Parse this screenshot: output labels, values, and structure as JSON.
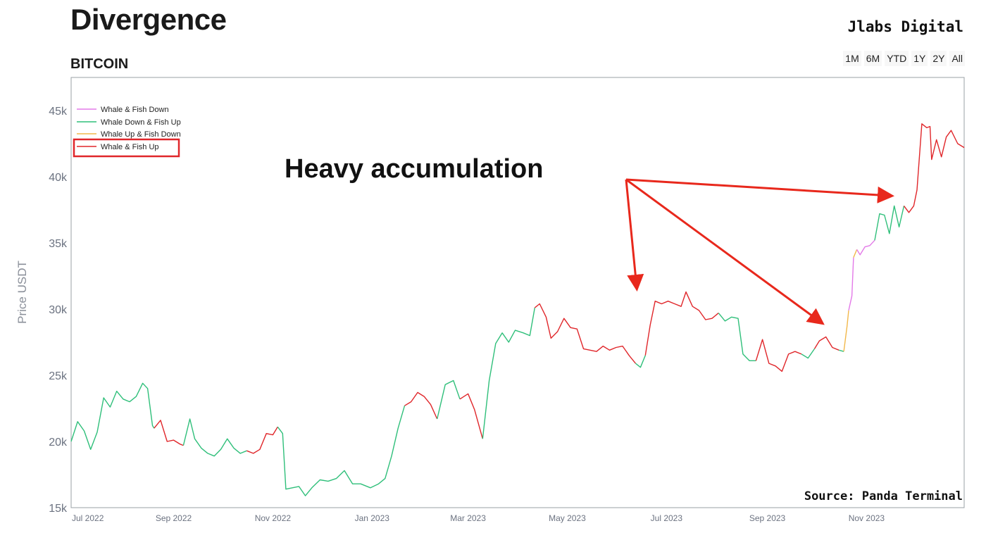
{
  "header": {
    "title": "Divergence",
    "subtitle": "BITCOIN",
    "brand": "Jlabs Digital",
    "ranges": [
      "1M",
      "6M",
      "YTD",
      "1Y",
      "2Y",
      "All"
    ]
  },
  "colors": {
    "whale_fish_down": "#e37ae8",
    "whale_down_fish_up": "#2fbf7a",
    "whale_up_fish_down": "#f2b84b",
    "whale_fish_up": "#e0262a",
    "annotation_arrow": "#e8281c",
    "legend_highlight": "#e0262a"
  },
  "annotation": {
    "text": "Heavy accumulation",
    "source": "Source: Panda Terminal"
  },
  "chart_data": {
    "type": "line",
    "ylabel": "Price USDT",
    "xlabel": "",
    "ylim": [
      15000,
      47500
    ],
    "y_ticks": [
      15000,
      20000,
      25000,
      30000,
      35000,
      40000,
      45000
    ],
    "y_tick_labels": [
      "15k",
      "20k",
      "25k",
      "30k",
      "35k",
      "40k",
      "45k"
    ],
    "xlim": [
      "2022-06-30",
      "2023-12-31"
    ],
    "x_ticks": [
      "2022-07-01",
      "2022-09-01",
      "2022-11-01",
      "2023-01-01",
      "2023-03-01",
      "2023-05-01",
      "2023-07-01",
      "2023-09-01",
      "2023-11-01"
    ],
    "x_tick_labels": [
      "Jul 2022",
      "Sep 2022",
      "Nov 2022",
      "Jan 2023",
      "Mar 2023",
      "May 2023",
      "Jul 2023",
      "Sep 2023",
      "Nov 2023"
    ],
    "legend": [
      {
        "name": "Whale & Fish Down",
        "key": "whale_fish_down",
        "highlighted": false
      },
      {
        "name": "Whale Down & Fish Up",
        "key": "whale_down_fish_up",
        "highlighted": false
      },
      {
        "name": "Whale Up & Fish Down",
        "key": "whale_up_fish_down",
        "highlighted": false
      },
      {
        "name": "Whale & Fish Up",
        "key": "whale_fish_up",
        "highlighted": true
      }
    ],
    "legend_position": "top-left",
    "grid": false,
    "series": [
      {
        "key": "whale_down_fish_up",
        "points": [
          [
            "2022-06-30",
            20000
          ],
          [
            "2022-07-04",
            21500
          ],
          [
            "2022-07-08",
            20800
          ],
          [
            "2022-07-12",
            19400
          ],
          [
            "2022-07-16",
            20700
          ],
          [
            "2022-07-20",
            23300
          ],
          [
            "2022-07-24",
            22600
          ],
          [
            "2022-07-28",
            23800
          ],
          [
            "2022-08-01",
            23200
          ],
          [
            "2022-08-05",
            23000
          ],
          [
            "2022-08-09",
            23400
          ],
          [
            "2022-08-13",
            24400
          ],
          [
            "2022-08-16",
            24000
          ],
          [
            "2022-08-19",
            21200
          ],
          [
            "2022-08-20",
            21000
          ]
        ]
      },
      {
        "key": "whale_fish_up",
        "points": [
          [
            "2022-08-20",
            21000
          ],
          [
            "2022-08-24",
            21600
          ],
          [
            "2022-08-28",
            20000
          ],
          [
            "2022-09-01",
            20100
          ],
          [
            "2022-09-05",
            19800
          ],
          [
            "2022-09-07",
            19700
          ]
        ]
      },
      {
        "key": "whale_down_fish_up",
        "points": [
          [
            "2022-09-07",
            19700
          ],
          [
            "2022-09-11",
            21700
          ],
          [
            "2022-09-14",
            20200
          ],
          [
            "2022-09-18",
            19500
          ],
          [
            "2022-09-22",
            19100
          ],
          [
            "2022-09-26",
            18900
          ],
          [
            "2022-09-30",
            19400
          ],
          [
            "2022-10-04",
            20200
          ],
          [
            "2022-10-08",
            19500
          ],
          [
            "2022-10-12",
            19100
          ],
          [
            "2022-10-16",
            19300
          ]
        ]
      },
      {
        "key": "whale_fish_up",
        "points": [
          [
            "2022-10-16",
            19300
          ],
          [
            "2022-10-20",
            19100
          ],
          [
            "2022-10-24",
            19400
          ],
          [
            "2022-10-28",
            20600
          ],
          [
            "2022-11-01",
            20500
          ],
          [
            "2022-11-04",
            21100
          ]
        ]
      },
      {
        "key": "whale_down_fish_up",
        "points": [
          [
            "2022-11-04",
            21100
          ],
          [
            "2022-11-07",
            20600
          ],
          [
            "2022-11-09",
            16400
          ],
          [
            "2022-11-13",
            16500
          ],
          [
            "2022-11-17",
            16600
          ],
          [
            "2022-11-21",
            15900
          ],
          [
            "2022-11-25",
            16500
          ],
          [
            "2022-11-30",
            17100
          ],
          [
            "2022-12-05",
            17000
          ],
          [
            "2022-12-10",
            17200
          ],
          [
            "2022-12-15",
            17800
          ],
          [
            "2022-12-20",
            16800
          ],
          [
            "2022-12-25",
            16800
          ],
          [
            "2022-12-31",
            16500
          ],
          [
            "2023-01-05",
            16800
          ],
          [
            "2023-01-09",
            17200
          ],
          [
            "2023-01-13",
            18900
          ],
          [
            "2023-01-17",
            21000
          ],
          [
            "2023-01-21",
            22700
          ]
        ]
      },
      {
        "key": "whale_fish_up",
        "points": [
          [
            "2023-01-21",
            22700
          ],
          [
            "2023-01-25",
            23000
          ],
          [
            "2023-01-29",
            23700
          ],
          [
            "2023-02-02",
            23400
          ],
          [
            "2023-02-06",
            22800
          ],
          [
            "2023-02-10",
            21700
          ]
        ]
      },
      {
        "key": "whale_down_fish_up",
        "points": [
          [
            "2023-02-10",
            21700
          ],
          [
            "2023-02-15",
            24300
          ],
          [
            "2023-02-20",
            24600
          ],
          [
            "2023-02-24",
            23200
          ]
        ]
      },
      {
        "key": "whale_fish_up",
        "points": [
          [
            "2023-02-24",
            23200
          ],
          [
            "2023-03-01",
            23600
          ],
          [
            "2023-03-05",
            22400
          ],
          [
            "2023-03-10",
            20200
          ]
        ]
      },
      {
        "key": "whale_down_fish_up",
        "points": [
          [
            "2023-03-10",
            20200
          ],
          [
            "2023-03-14",
            24600
          ],
          [
            "2023-03-18",
            27400
          ],
          [
            "2023-03-22",
            28200
          ],
          [
            "2023-03-26",
            27500
          ],
          [
            "2023-03-30",
            28400
          ],
          [
            "2023-04-04",
            28200
          ],
          [
            "2023-04-08",
            28000
          ],
          [
            "2023-04-11",
            30100
          ]
        ]
      },
      {
        "key": "whale_fish_up",
        "points": [
          [
            "2023-04-11",
            30100
          ],
          [
            "2023-04-14",
            30400
          ],
          [
            "2023-04-18",
            29400
          ],
          [
            "2023-04-21",
            27800
          ],
          [
            "2023-04-25",
            28300
          ],
          [
            "2023-04-29",
            29300
          ],
          [
            "2023-05-03",
            28600
          ],
          [
            "2023-05-07",
            28500
          ],
          [
            "2023-05-11",
            27000
          ],
          [
            "2023-05-15",
            26900
          ],
          [
            "2023-05-19",
            26800
          ],
          [
            "2023-05-23",
            27200
          ],
          [
            "2023-05-27",
            26900
          ],
          [
            "2023-05-31",
            27100
          ],
          [
            "2023-06-04",
            27200
          ],
          [
            "2023-06-08",
            26500
          ],
          [
            "2023-06-12",
            25900
          ]
        ]
      },
      {
        "key": "whale_down_fish_up",
        "points": [
          [
            "2023-06-12",
            25900
          ],
          [
            "2023-06-15",
            25600
          ],
          [
            "2023-06-18",
            26500
          ]
        ]
      },
      {
        "key": "whale_fish_up",
        "points": [
          [
            "2023-06-18",
            26500
          ],
          [
            "2023-06-21",
            28800
          ],
          [
            "2023-06-24",
            30600
          ],
          [
            "2023-06-28",
            30400
          ],
          [
            "2023-07-02",
            30600
          ],
          [
            "2023-07-06",
            30400
          ],
          [
            "2023-07-10",
            30200
          ],
          [
            "2023-07-13",
            31300
          ],
          [
            "2023-07-17",
            30200
          ],
          [
            "2023-07-21",
            29900
          ],
          [
            "2023-07-25",
            29200
          ],
          [
            "2023-07-29",
            29300
          ],
          [
            "2023-08-02",
            29700
          ]
        ]
      },
      {
        "key": "whale_down_fish_up",
        "points": [
          [
            "2023-08-02",
            29700
          ],
          [
            "2023-08-06",
            29100
          ],
          [
            "2023-08-10",
            29400
          ],
          [
            "2023-08-14",
            29300
          ],
          [
            "2023-08-17",
            26600
          ],
          [
            "2023-08-21",
            26100
          ],
          [
            "2023-08-25",
            26100
          ]
        ]
      },
      {
        "key": "whale_fish_up",
        "points": [
          [
            "2023-08-25",
            26100
          ],
          [
            "2023-08-29",
            27700
          ],
          [
            "2023-09-02",
            25900
          ],
          [
            "2023-09-06",
            25700
          ],
          [
            "2023-09-10",
            25300
          ],
          [
            "2023-09-14",
            26600
          ],
          [
            "2023-09-18",
            26800
          ],
          [
            "2023-09-22",
            26600
          ]
        ]
      },
      {
        "key": "whale_down_fish_up",
        "points": [
          [
            "2023-09-22",
            26600
          ],
          [
            "2023-09-26",
            26300
          ],
          [
            "2023-09-30",
            27000
          ]
        ]
      },
      {
        "key": "whale_fish_up",
        "points": [
          [
            "2023-09-30",
            27000
          ],
          [
            "2023-10-03",
            27600
          ],
          [
            "2023-10-07",
            27900
          ],
          [
            "2023-10-11",
            27100
          ],
          [
            "2023-10-15",
            26900
          ]
        ]
      },
      {
        "key": "whale_down_fish_up",
        "points": [
          [
            "2023-10-15",
            26900
          ],
          [
            "2023-10-18",
            26800
          ]
        ]
      },
      {
        "key": "whale_up_fish_down",
        "points": [
          [
            "2023-10-18",
            26800
          ],
          [
            "2023-10-20",
            28700
          ],
          [
            "2023-10-21",
            29900
          ]
        ]
      },
      {
        "key": "whale_fish_down",
        "points": [
          [
            "2023-10-21",
            29900
          ],
          [
            "2023-10-23",
            31000
          ],
          [
            "2023-10-24",
            33900
          ]
        ]
      },
      {
        "key": "whale_up_fish_down",
        "points": [
          [
            "2023-10-24",
            33900
          ],
          [
            "2023-10-26",
            34500
          ]
        ]
      },
      {
        "key": "whale_fish_down",
        "points": [
          [
            "2023-10-26",
            34500
          ],
          [
            "2023-10-28",
            34100
          ],
          [
            "2023-10-31",
            34700
          ],
          [
            "2023-11-03",
            34800
          ],
          [
            "2023-11-06",
            35200
          ]
        ]
      },
      {
        "key": "whale_down_fish_up",
        "points": [
          [
            "2023-11-06",
            35200
          ],
          [
            "2023-11-09",
            37200
          ],
          [
            "2023-11-12",
            37100
          ],
          [
            "2023-11-15",
            35700
          ],
          [
            "2023-11-18",
            37800
          ],
          [
            "2023-11-21",
            36200
          ],
          [
            "2023-11-24",
            37800
          ]
        ]
      },
      {
        "key": "whale_fish_up",
        "points": [
          [
            "2023-11-24",
            37800
          ],
          [
            "2023-11-27",
            37300
          ],
          [
            "2023-11-30",
            37800
          ],
          [
            "2023-12-02",
            39000
          ],
          [
            "2023-12-05",
            44000
          ],
          [
            "2023-12-08",
            43700
          ],
          [
            "2023-12-10",
            43800
          ],
          [
            "2023-12-11",
            41300
          ],
          [
            "2023-12-14",
            42800
          ],
          [
            "2023-12-17",
            41500
          ],
          [
            "2023-12-20",
            43000
          ],
          [
            "2023-12-23",
            43500
          ],
          [
            "2023-12-27",
            42500
          ],
          [
            "2023-12-31",
            42200
          ]
        ]
      }
    ]
  }
}
